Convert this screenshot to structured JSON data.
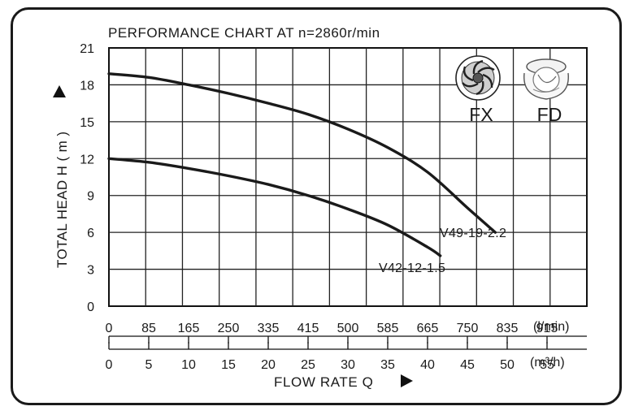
{
  "chart_data": {
    "type": "line",
    "title": "PERFORMANCE CHART AT n=2860r/min",
    "ylabel": "TOTAL HEAD H ( m )",
    "xlabel": "FLOW RATE Q",
    "ylim": [
      0,
      21
    ],
    "xlim_m3h": [
      0,
      60
    ],
    "y_ticks": [
      "0",
      "3",
      "6",
      "9",
      "12",
      "15",
      "18",
      "21"
    ],
    "x_ticks_lmin": [
      "0",
      "85",
      "165",
      "250",
      "335",
      "415",
      "500",
      "585",
      "665",
      "750",
      "835",
      "915"
    ],
    "x_unit_lmin": "(l/min)",
    "x_ticks_m3h": [
      "0",
      "5",
      "10",
      "15",
      "20",
      "25",
      "30",
      "35",
      "40",
      "45",
      "50",
      "55"
    ],
    "x_unit_m3h": "(m³/h)",
    "grid": true,
    "series": [
      {
        "name": "V49-19-2.2",
        "x": [
          0,
          5,
          10,
          15,
          20,
          25,
          30,
          35,
          40,
          45,
          48.5
        ],
        "y": [
          18.9,
          18.6,
          18.0,
          17.3,
          16.5,
          15.6,
          14.4,
          12.9,
          10.9,
          8.0,
          6.0
        ]
      },
      {
        "name": "V42-12-1.5",
        "x": [
          0,
          5,
          10,
          15,
          20,
          25,
          30,
          35,
          40,
          41.6
        ],
        "y": [
          12.0,
          11.7,
          11.2,
          10.6,
          9.9,
          9.0,
          7.9,
          6.6,
          4.8,
          4.1
        ]
      }
    ],
    "impeller_labels": [
      "FX",
      "FD"
    ]
  }
}
